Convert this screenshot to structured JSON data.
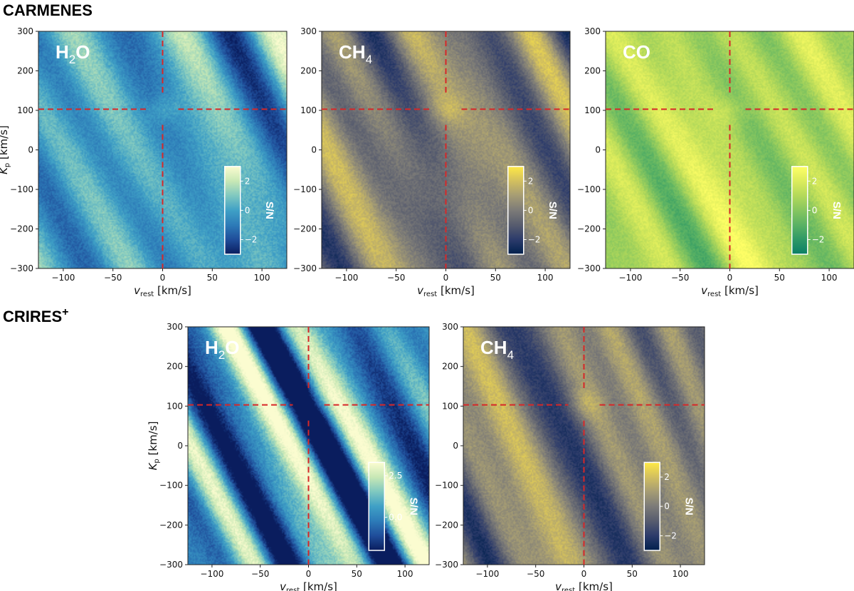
{
  "sections": {
    "carmenes": "CARMENES",
    "crires": "CRIRES",
    "crires_sup": "+"
  },
  "axes": {
    "xlabel": {
      "main": "v",
      "sub": "rest",
      "unit": " [km/s]"
    },
    "ylabel": {
      "main": "K",
      "sub": "p",
      "unit": " [km/s]"
    }
  },
  "colormaps": {
    "ygb": [
      "#0a1d5e",
      "#1f4d9a",
      "#2d7bb8",
      "#3fa0c6",
      "#7fc8c0",
      "#c8e8b5",
      "#fbfcd0"
    ],
    "cividis": [
      "#00204d",
      "#2c3b6b",
      "#575c6e",
      "#7c7b78",
      "#a59c74",
      "#d2bf5f",
      "#ffe945"
    ],
    "summer": [
      "#0a7f66",
      "#2e9966",
      "#5ab264",
      "#86c65f",
      "#b3d95a",
      "#dcec5c",
      "#ffff66"
    ]
  },
  "marker_color": "#d62728",
  "chart_data": [
    {
      "type": "heatmap",
      "panel": "carmenes-h2o",
      "title_main": "H",
      "title_sub": "2",
      "title_rest": "O",
      "x": [
        -100,
        -50,
        0,
        50,
        100
      ],
      "y": [
        -300,
        -200,
        -100,
        0,
        100,
        200,
        300
      ],
      "xticks": [
        "−100",
        "−50",
        "0",
        "50",
        "100"
      ],
      "yticks": [
        "−300",
        "−200",
        "−100",
        "0",
        "100",
        "200",
        "300"
      ],
      "xlim": [
        -125,
        125
      ],
      "ylim": [
        -300,
        300
      ],
      "cmap": "ygb",
      "clim": [
        -3,
        3
      ],
      "cbar_ticks": [
        2,
        0,
        -2
      ],
      "cbar_tick_labels": [
        "2",
        "0",
        "−2"
      ],
      "cbar_label": "S/N",
      "marker": {
        "vrest": 0,
        "kp": 103
      },
      "seed": 11,
      "bias": 0.0
    },
    {
      "type": "heatmap",
      "panel": "carmenes-ch4",
      "title_main": "CH",
      "title_sub": "4",
      "title_rest": "",
      "x": [
        -100,
        -50,
        0,
        50,
        100
      ],
      "y": [
        -300,
        -200,
        -100,
        0,
        100,
        200,
        300
      ],
      "xticks": [
        "−100",
        "−50",
        "0",
        "50",
        "100"
      ],
      "yticks": [
        "−300",
        "−200",
        "−100",
        "0",
        "100",
        "200",
        "300"
      ],
      "xlim": [
        -125,
        125
      ],
      "ylim": [
        -300,
        300
      ],
      "cmap": "cividis",
      "clim": [
        -3,
        3
      ],
      "cbar_ticks": [
        2,
        0,
        -2
      ],
      "cbar_tick_labels": [
        "2",
        "0",
        "−2"
      ],
      "cbar_label": "S/N",
      "marker": {
        "vrest": 0,
        "kp": 103
      },
      "seed": 23,
      "bias": 0.0
    },
    {
      "type": "heatmap",
      "panel": "carmenes-co",
      "title_main": "CO",
      "title_sub": "",
      "title_rest": "",
      "x": [
        -100,
        -50,
        0,
        50,
        100
      ],
      "y": [
        -300,
        -200,
        -100,
        0,
        100,
        200,
        300
      ],
      "xticks": [
        "−100",
        "−50",
        "0",
        "50",
        "100"
      ],
      "yticks": [
        "−300",
        "−200",
        "−100",
        "0",
        "100",
        "200",
        "300"
      ],
      "xlim": [
        -125,
        125
      ],
      "ylim": [
        -300,
        300
      ],
      "cmap": "summer",
      "clim": [
        -3,
        3
      ],
      "cbar_ticks": [
        2,
        0,
        -2
      ],
      "cbar_tick_labels": [
        "2",
        "0",
        "−2"
      ],
      "cbar_label": "S/N",
      "marker": {
        "vrest": 0,
        "kp": 103
      },
      "seed": 37,
      "bias": 0.9
    },
    {
      "type": "heatmap",
      "panel": "crires-h2o",
      "title_main": "H",
      "title_sub": "2",
      "title_rest": "O",
      "x": [
        -100,
        -50,
        0,
        50,
        100
      ],
      "y": [
        -300,
        -200,
        -100,
        0,
        100,
        200,
        300
      ],
      "xticks": [
        "−100",
        "−50",
        "0",
        "50",
        "100"
      ],
      "yticks": [
        "−300",
        "−200",
        "−100",
        "0",
        "100",
        "200",
        "300"
      ],
      "xlim": [
        -125,
        125
      ],
      "ylim": [
        -300,
        300
      ],
      "cmap": "ygb",
      "clim": [
        -2,
        3.3
      ],
      "cbar_ticks": [
        2.5,
        0.0
      ],
      "cbar_tick_labels": [
        "2.5",
        "0.0"
      ],
      "cbar_label": "S/N",
      "marker": {
        "vrest": 0,
        "kp": 103
      },
      "seed": 51,
      "bias": 0.2
    },
    {
      "type": "heatmap",
      "panel": "crires-ch4",
      "title_main": "CH",
      "title_sub": "4",
      "title_rest": "",
      "x": [
        -100,
        -50,
        0,
        50,
        100
      ],
      "y": [
        -300,
        -200,
        -100,
        0,
        100,
        200,
        300
      ],
      "xticks": [
        "−100",
        "−50",
        "0",
        "50",
        "100"
      ],
      "yticks": [
        "−300",
        "−200",
        "−100",
        "0",
        "100",
        "200",
        "300"
      ],
      "xlim": [
        -125,
        125
      ],
      "ylim": [
        -300,
        300
      ],
      "cmap": "cividis",
      "clim": [
        -3,
        3
      ],
      "cbar_ticks": [
        2,
        0,
        -2
      ],
      "cbar_tick_labels": [
        "2",
        "0",
        "−2"
      ],
      "cbar_label": "S/N",
      "marker": {
        "vrest": 0,
        "kp": 103
      },
      "seed": 67,
      "bias": 0.0
    }
  ]
}
